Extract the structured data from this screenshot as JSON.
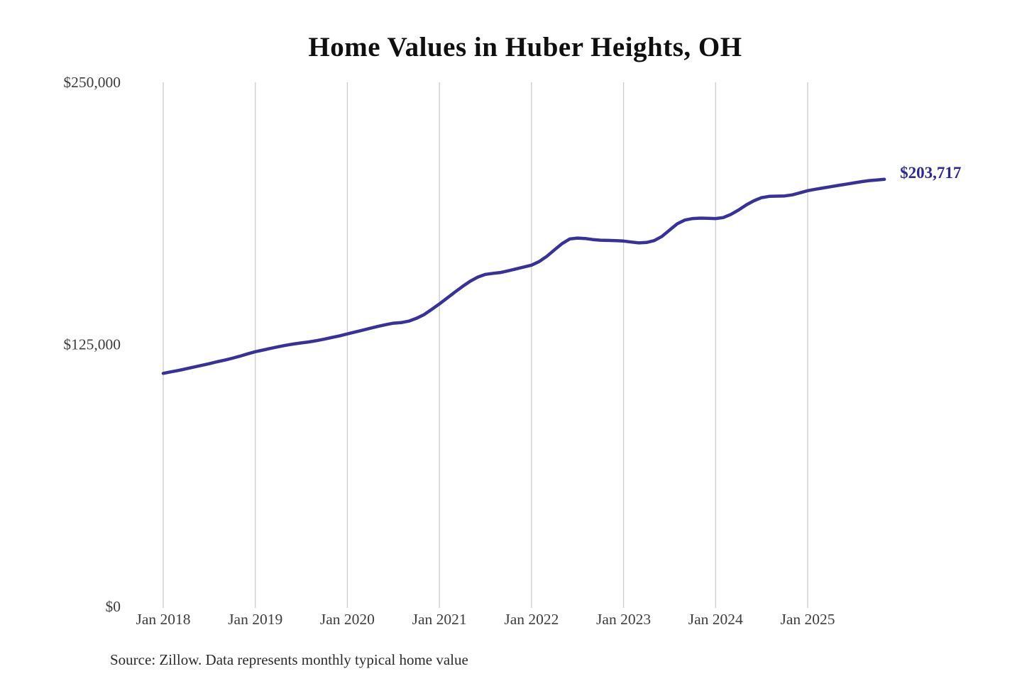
{
  "title": "Home Values in Huber Heights, OH",
  "source": "Source: Zillow. Data represents monthly typical home value",
  "end_label": "$203,717",
  "colors": {
    "line": "#39319a",
    "end_label": "#2d2890",
    "gridline": "#cccccc",
    "tick_text": "#3d3d3d",
    "title_text": "#0f0f0f",
    "source_text": "#2b2b2b",
    "background": "#ffffff"
  },
  "chart_data": {
    "type": "line",
    "title": "Home Values in Huber Heights, OH",
    "xlabel": "",
    "ylabel": "",
    "ylim": [
      0,
      250000
    ],
    "grid": "vertical-only",
    "legend": "none",
    "start_month": "2018-01",
    "months_per_point": 1,
    "y_ticks": [
      {
        "label": "$0",
        "value": 0
      },
      {
        "label": "$125,000",
        "value": 125000
      },
      {
        "label": "$250,000",
        "value": 250000
      }
    ],
    "x_ticks": [
      {
        "label": "Jan 2018",
        "month_index": 0
      },
      {
        "label": "Jan 2019",
        "month_index": 12
      },
      {
        "label": "Jan 2020",
        "month_index": 24
      },
      {
        "label": "Jan 2021",
        "month_index": 36
      },
      {
        "label": "Jan 2022",
        "month_index": 48
      },
      {
        "label": "Jan 2023",
        "month_index": 60
      },
      {
        "label": "Jan 2024",
        "month_index": 72
      },
      {
        "label": "Jan 2025",
        "month_index": 84
      }
    ],
    "series": [
      {
        "name": "Monthly typical home value",
        "end_value": 203717,
        "values": [
          111200,
          111900,
          112600,
          113400,
          114200,
          115000,
          115800,
          116700,
          117500,
          118400,
          119400,
          120500,
          121500,
          122300,
          123100,
          123900,
          124600,
          125200,
          125700,
          126200,
          126800,
          127500,
          128300,
          129100,
          130000,
          130900,
          131800,
          132700,
          133600,
          134400,
          135100,
          135400,
          136100,
          137400,
          139200,
          141700,
          144300,
          147100,
          149900,
          152600,
          155100,
          157100,
          158400,
          158900,
          159300,
          160100,
          161000,
          161900,
          162800,
          164500,
          167000,
          170100,
          173100,
          175300,
          175700,
          175500,
          175000,
          174700,
          174600,
          174500,
          174300,
          173800,
          173400,
          173600,
          174500,
          176500,
          179500,
          182500,
          184300,
          185000,
          185200,
          185100,
          185000,
          185500,
          187000,
          189100,
          191500,
          193500,
          195000,
          195600,
          195700,
          195800,
          196300,
          197300,
          198300,
          199000,
          199600,
          200200,
          200800,
          201400,
          202000,
          202600,
          203100,
          203400,
          203717
        ]
      }
    ]
  }
}
